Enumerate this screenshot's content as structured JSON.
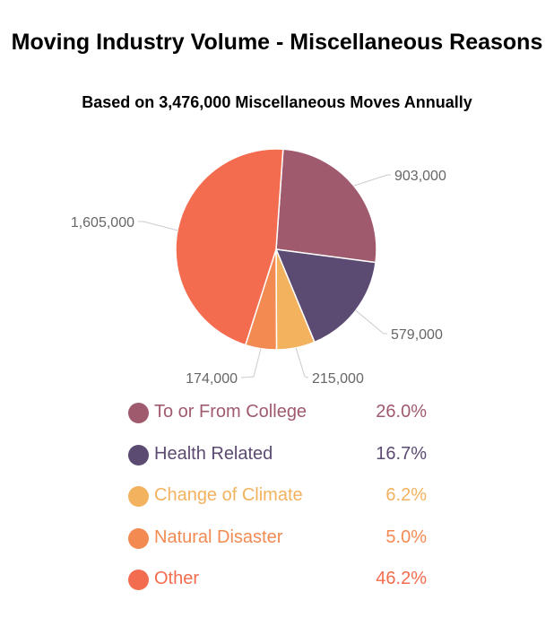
{
  "chart_data": {
    "type": "pie",
    "title": "Moving Industry Volume - Miscellaneous Reasons",
    "subtitle": "Based on 3,476,000 Miscellaneous Moves Annually",
    "slices": [
      {
        "name": "To or From College",
        "value": 903000,
        "value_label": "903,000",
        "percent_label": "26.0%",
        "color": "#a05a6e"
      },
      {
        "name": "Health Related",
        "value": 579000,
        "value_label": "579,000",
        "percent_label": "16.7%",
        "color": "#5b4a72"
      },
      {
        "name": "Change of Climate",
        "value": 215000,
        "value_label": "215,000",
        "percent_label": "6.2%",
        "color": "#f2b25e"
      },
      {
        "name": "Natural Disaster",
        "value": 174000,
        "value_label": "174,000",
        "percent_label": "5.0%",
        "color": "#f28a52"
      },
      {
        "name": "Other",
        "value": 1605000,
        "value_label": "1,605,000",
        "percent_label": "46.2%",
        "color": "#f36c4f"
      }
    ],
    "legend_position": "bottom"
  }
}
